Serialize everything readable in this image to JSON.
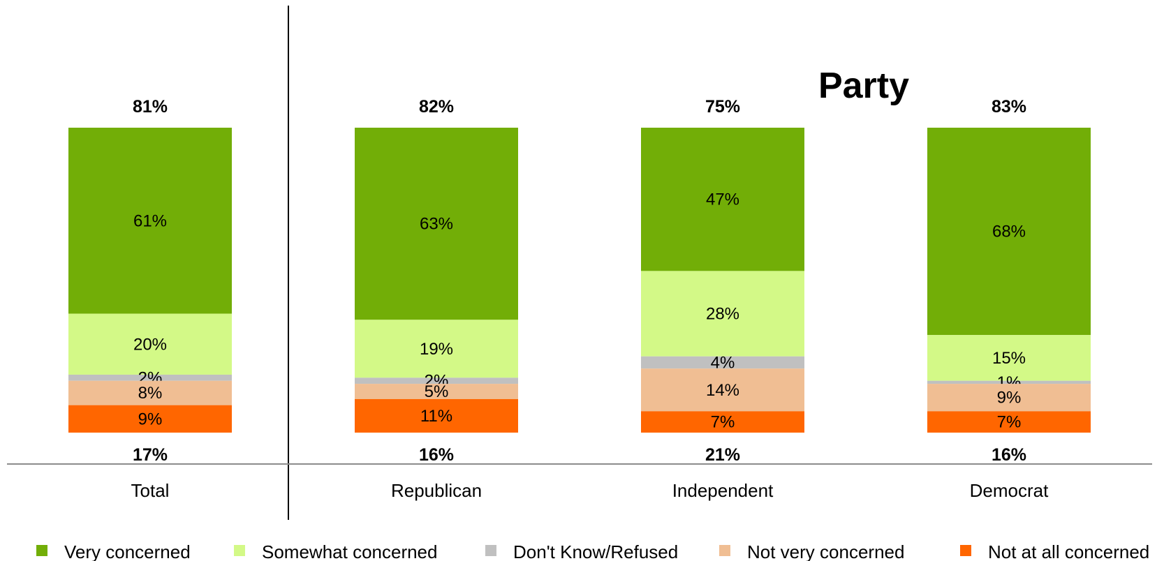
{
  "chart_data": {
    "type": "bar",
    "stacked": true,
    "orientation": "vertical",
    "group_title": "Party",
    "categories": [
      "Total",
      "Republican",
      "Independent",
      "Democrat"
    ],
    "series": [
      {
        "name": "Very concerned",
        "color": "#72AE07",
        "values": [
          61,
          63,
          47,
          68
        ],
        "labels": [
          "61%",
          "63%",
          "47%",
          "68%"
        ]
      },
      {
        "name": "Somewhat concerned",
        "color": "#D3F987",
        "values": [
          20,
          19,
          28,
          15
        ],
        "labels": [
          "20%",
          "19%",
          "28%",
          "15%"
        ]
      },
      {
        "name": "Don't Know/Refused",
        "color": "#C0C0C0",
        "values": [
          2,
          2,
          4,
          1
        ],
        "labels": [
          "2%",
          "2%",
          "4%",
          "1%"
        ]
      },
      {
        "name": "Not very concerned",
        "color": "#F0BE93",
        "values": [
          8,
          5,
          14,
          9
        ],
        "labels": [
          "8%",
          "5%",
          "14%",
          "9%"
        ]
      },
      {
        "name": "Not at all concerned",
        "color": "#FF6600",
        "values": [
          9,
          11,
          7,
          7
        ],
        "labels": [
          "9%",
          "11%",
          "7%",
          "7%"
        ]
      }
    ],
    "top_totals": [
      "81%",
      "82%",
      "75%",
      "83%"
    ],
    "bottom_totals": [
      "17%",
      "16%",
      "21%",
      "16%"
    ],
    "legend_position": "bottom",
    "grid": false
  }
}
